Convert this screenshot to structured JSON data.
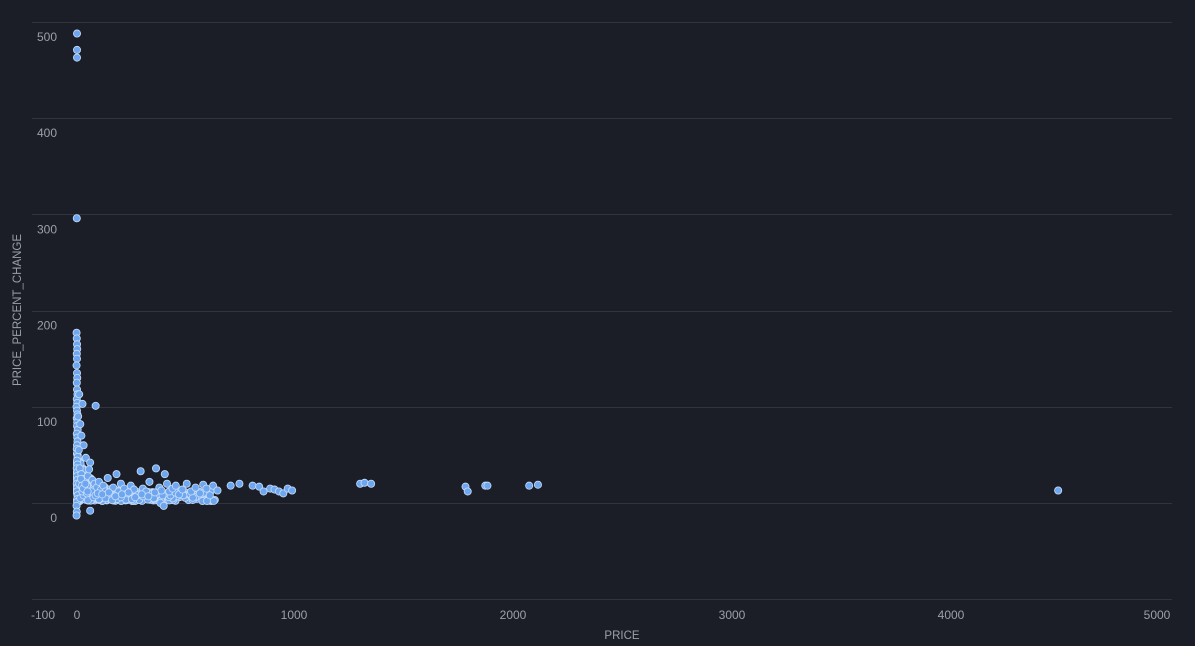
{
  "chart_data": {
    "type": "scatter",
    "title": "",
    "xlabel": "PRICE",
    "ylabel": "PRICE_PERCENT_CHANGE",
    "xlim": [
      -100,
      5000
    ],
    "ylim": [
      -100,
      500
    ],
    "xticks": [
      "-100",
      "0",
      "1000",
      "2000",
      "3000",
      "4000",
      "5000"
    ],
    "yticks": [
      "0",
      "100",
      "200",
      "300",
      "400",
      "500"
    ],
    "grid": true,
    "colors": {
      "background": "#1b1e26",
      "gridline": "#30343f",
      "point_fill": "#6ea7f0",
      "point_stroke": "#c9defa",
      "text": "#9aa0ab"
    },
    "series": [
      {
        "points": [
          [
            0,
            488
          ],
          [
            0,
            471
          ],
          [
            0,
            463
          ],
          [
            -1,
            296
          ],
          [
            -2,
            177
          ],
          [
            -1,
            171
          ],
          [
            0,
            165
          ],
          [
            1,
            160
          ],
          [
            -1,
            155
          ],
          [
            0,
            150
          ],
          [
            -2,
            143
          ],
          [
            0,
            135
          ],
          [
            1,
            130
          ],
          [
            -1,
            125
          ],
          [
            0,
            118
          ],
          [
            2,
            113
          ],
          [
            -1,
            108
          ],
          [
            1,
            104
          ],
          [
            -2,
            100
          ],
          [
            0,
            96
          ],
          [
            2,
            92
          ],
          [
            -1,
            88
          ],
          [
            1,
            84
          ],
          [
            0,
            80
          ],
          [
            3,
            76
          ],
          [
            -1,
            72
          ],
          [
            1,
            68
          ],
          [
            2,
            64
          ],
          [
            0,
            60
          ],
          [
            -1,
            56
          ],
          [
            1,
            52
          ],
          [
            3,
            48
          ],
          [
            0,
            44
          ],
          [
            2,
            40
          ],
          [
            -1,
            36
          ],
          [
            1,
            32
          ],
          [
            0,
            28
          ],
          [
            2,
            24
          ],
          [
            -1,
            20
          ],
          [
            1,
            16
          ],
          [
            0,
            12
          ],
          [
            3,
            8
          ],
          [
            1,
            4
          ],
          [
            0,
            1
          ],
          [
            -2,
            -3
          ],
          [
            -1,
            -9
          ],
          [
            -2,
            -13
          ],
          [
            10,
            113
          ],
          [
            25,
            103
          ],
          [
            85,
            101
          ],
          [
            15,
            82
          ],
          [
            30,
            60
          ],
          [
            40,
            47
          ],
          [
            60,
            42
          ],
          [
            20,
            70
          ],
          [
            8,
            55
          ],
          [
            12,
            36
          ],
          [
            5,
            90
          ],
          [
            20,
            30
          ],
          [
            25,
            25
          ],
          [
            35,
            22
          ],
          [
            45,
            18
          ],
          [
            50,
            28
          ],
          [
            55,
            35
          ],
          [
            70,
            24
          ],
          [
            80,
            20
          ],
          [
            90,
            16
          ],
          [
            100,
            22
          ],
          [
            110,
            14
          ],
          [
            120,
            18
          ],
          [
            130,
            12
          ],
          [
            140,
            26
          ],
          [
            150,
            10
          ],
          [
            165,
            16
          ],
          [
            180,
            30
          ],
          [
            190,
            12
          ],
          [
            200,
            20
          ],
          [
            215,
            15
          ],
          [
            230,
            10
          ],
          [
            245,
            18
          ],
          [
            260,
            14
          ],
          [
            275,
            8
          ],
          [
            290,
            33
          ],
          [
            300,
            15
          ],
          [
            315,
            12
          ],
          [
            330,
            22
          ],
          [
            345,
            10
          ],
          [
            360,
            36
          ],
          [
            375,
            16
          ],
          [
            390,
            8
          ],
          [
            400,
            30
          ],
          [
            410,
            20
          ],
          [
            420,
            12
          ],
          [
            435,
            15
          ],
          [
            450,
            18
          ],
          [
            465,
            9
          ],
          [
            480,
            14
          ],
          [
            500,
            20
          ],
          [
            520,
            12
          ],
          [
            540,
            16
          ],
          [
            560,
            10
          ],
          [
            575,
            19
          ],
          [
            590,
            15
          ],
          [
            605,
            8
          ],
          [
            620,
            18
          ],
          [
            640,
            13
          ],
          [
            15,
            5
          ],
          [
            30,
            8
          ],
          [
            50,
            3
          ],
          [
            75,
            6
          ],
          [
            100,
            4
          ],
          [
            130,
            5
          ],
          [
            160,
            3
          ],
          [
            200,
            6
          ],
          [
            250,
            4
          ],
          [
            300,
            7
          ],
          [
            350,
            5
          ],
          [
            380,
            0
          ],
          [
            395,
            -3
          ],
          [
            60,
            -8
          ],
          [
            25,
            12
          ],
          [
            35,
            14
          ],
          [
            45,
            10
          ],
          [
            65,
            12
          ],
          [
            85,
            8
          ],
          [
            95,
            10
          ],
          [
            115,
            9
          ],
          [
            145,
            11
          ],
          [
            175,
            7
          ],
          [
            205,
            9
          ],
          [
            235,
            11
          ],
          [
            265,
            6
          ],
          [
            295,
            9
          ],
          [
            325,
            7
          ],
          [
            355,
            11
          ],
          [
            385,
            13
          ],
          [
            10,
            20
          ],
          [
            18,
            25
          ],
          [
            22,
            18
          ],
          [
            28,
            15
          ],
          [
            38,
            20
          ],
          [
            48,
            12
          ],
          [
            700,
            18
          ],
          [
            740,
            20
          ],
          [
            800,
            18
          ],
          [
            830,
            17
          ],
          [
            850,
            12
          ],
          [
            880,
            15
          ],
          [
            900,
            14
          ],
          [
            920,
            12
          ],
          [
            940,
            10
          ],
          [
            960,
            15
          ],
          [
            980,
            13
          ],
          [
            1290,
            20
          ],
          [
            1310,
            21
          ],
          [
            1340,
            20
          ],
          [
            1770,
            17
          ],
          [
            1780,
            12
          ],
          [
            1860,
            18
          ],
          [
            1870,
            18
          ],
          [
            2060,
            18
          ],
          [
            2100,
            19
          ],
          [
            4470,
            13
          ]
        ]
      }
    ]
  }
}
